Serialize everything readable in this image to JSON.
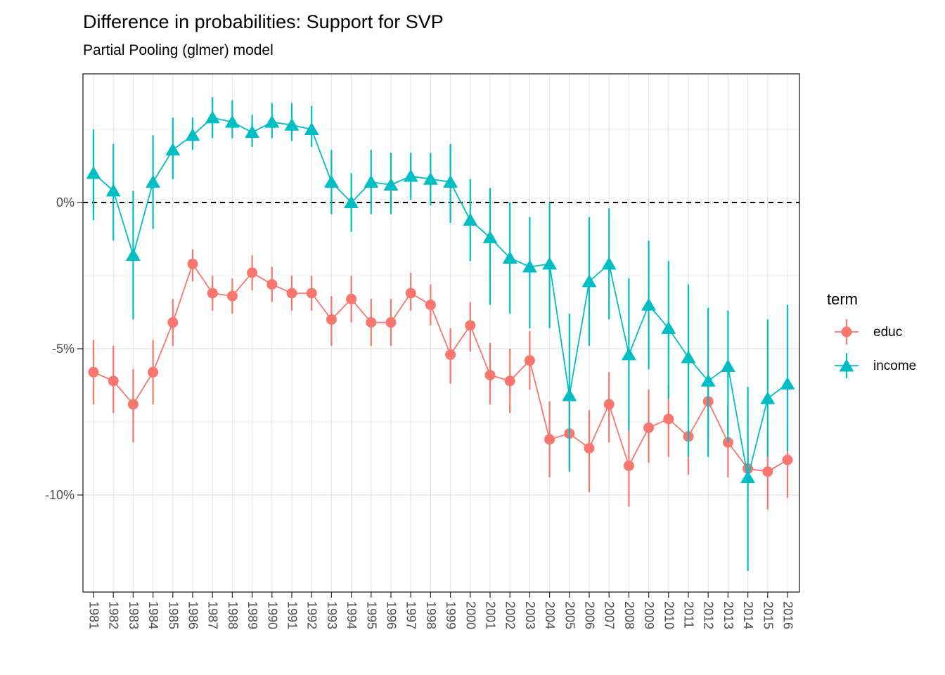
{
  "title": "Difference in probabilities: Support for SVP",
  "subtitle": "Partial Pooling (glmer) model",
  "legend": {
    "title": "term",
    "entries": [
      {
        "label": "educ",
        "color": "#F8766D",
        "shape": "circle"
      },
      {
        "label": "income",
        "color": "#00BFC4",
        "shape": "triangle"
      }
    ]
  },
  "colors": {
    "educ": "#F8766D",
    "income": "#00BFC4",
    "axis_text": "#4D4D4D",
    "panel_border": "#333333",
    "grid_major": "#E4E4E4",
    "grid_minor": "#F0F0F0",
    "reference_line": "#000000"
  },
  "chart_data": {
    "type": "line",
    "subtype": "pointrange",
    "title": "Difference in probabilities: Support for SVP",
    "subtitle": "Partial Pooling (glmer) model",
    "xlabel": "",
    "ylabel": "",
    "legend_position": "right",
    "grid": true,
    "x": [
      1981,
      1982,
      1983,
      1984,
      1985,
      1986,
      1987,
      1988,
      1989,
      1990,
      1991,
      1992,
      1993,
      1994,
      1995,
      1996,
      1997,
      1998,
      1999,
      2000,
      2001,
      2002,
      2003,
      2004,
      2005,
      2006,
      2007,
      2008,
      2009,
      2010,
      2011,
      2012,
      2013,
      2014,
      2015,
      2016
    ],
    "ylim": [
      -13.3,
      4.45
    ],
    "yticks": [
      {
        "value": 0,
        "label": "0%"
      },
      {
        "value": -5,
        "label": "-5%"
      },
      {
        "value": -10,
        "label": "-10%"
      }
    ],
    "y_minor_gridlines": [
      2.5,
      -2.5,
      -7.5
    ],
    "reference_line": {
      "y": 0,
      "style": "dashed"
    },
    "series": [
      {
        "name": "educ",
        "color": "#F8766D",
        "shape": "circle",
        "values": [
          -5.8,
          -6.1,
          -6.9,
          -5.8,
          -4.1,
          -2.1,
          -3.1,
          -3.2,
          -2.4,
          -2.8,
          -3.1,
          -3.1,
          -4.0,
          -3.3,
          -4.1,
          -4.1,
          -3.1,
          -3.5,
          -5.2,
          -4.2,
          -5.9,
          -6.1,
          -5.4,
          -8.1,
          -7.9,
          -8.4,
          -6.9,
          -9.0,
          -7.7,
          -7.4,
          -8.0,
          -6.8,
          -8.2,
          -9.1,
          -9.2,
          -8.8
        ],
        "ci_low": [
          -6.9,
          -7.2,
          -8.2,
          -6.9,
          -4.9,
          -2.7,
          -3.7,
          -3.8,
          -3.0,
          -3.4,
          -3.7,
          -3.7,
          -4.9,
          -4.1,
          -4.9,
          -4.9,
          -3.7,
          -4.2,
          -6.2,
          -5.1,
          -6.9,
          -7.2,
          -6.4,
          -9.4,
          -9.1,
          -9.9,
          -8.2,
          -10.4,
          -8.9,
          -8.7,
          -9.3,
          -8.1,
          -9.4,
          -10.2,
          -10.5,
          -10.1
        ],
        "ci_high": [
          -4.7,
          -4.9,
          -5.7,
          -4.7,
          -3.3,
          -1.6,
          -2.5,
          -2.6,
          -1.8,
          -2.2,
          -2.5,
          -2.5,
          -3.2,
          -2.5,
          -3.3,
          -3.3,
          -2.4,
          -2.8,
          -4.3,
          -3.4,
          -4.8,
          -5.0,
          -4.4,
          -6.8,
          -6.7,
          -7.1,
          -5.8,
          -7.3,
          -6.4,
          -6.2,
          -6.8,
          -5.8,
          -6.9,
          -7.9,
          -7.9,
          -7.5
        ]
      },
      {
        "name": "income",
        "color": "#00BFC4",
        "shape": "triangle",
        "values": [
          1.0,
          0.4,
          -1.8,
          0.7,
          1.8,
          2.3,
          2.9,
          2.75,
          2.4,
          2.75,
          2.65,
          2.5,
          0.7,
          0.0,
          0.7,
          0.6,
          0.9,
          0.8,
          0.7,
          -0.6,
          -1.2,
          -1.9,
          -2.2,
          -2.1,
          -6.6,
          -2.7,
          -2.1,
          -5.2,
          -3.5,
          -4.3,
          -5.3,
          -6.1,
          -5.6,
          -9.4,
          -6.7,
          -6.2
        ],
        "ci_low": [
          -0.6,
          -1.3,
          -4.0,
          -0.9,
          0.8,
          1.8,
          2.2,
          2.2,
          1.9,
          2.2,
          2.1,
          1.9,
          -0.4,
          -1.0,
          -0.4,
          -0.4,
          0.1,
          -0.1,
          -0.7,
          -2.0,
          -3.5,
          -3.8,
          -4.3,
          -4.3,
          -9.2,
          -4.9,
          -4.0,
          -7.8,
          -5.7,
          -6.7,
          -8.7,
          -8.7,
          -8.2,
          -12.6,
          -8.7,
          -8.5
        ],
        "ci_high": [
          2.5,
          2.0,
          0.4,
          2.3,
          2.9,
          2.9,
          3.6,
          3.5,
          3.0,
          3.4,
          3.4,
          3.3,
          1.8,
          1.0,
          1.8,
          1.7,
          1.7,
          1.7,
          2.0,
          0.8,
          0.5,
          0.0,
          -0.5,
          0.0,
          -3.8,
          -0.5,
          -0.2,
          -2.6,
          -1.3,
          -2.0,
          -2.8,
          -3.6,
          -3.7,
          -6.3,
          -4.0,
          -3.5
        ]
      }
    ]
  }
}
